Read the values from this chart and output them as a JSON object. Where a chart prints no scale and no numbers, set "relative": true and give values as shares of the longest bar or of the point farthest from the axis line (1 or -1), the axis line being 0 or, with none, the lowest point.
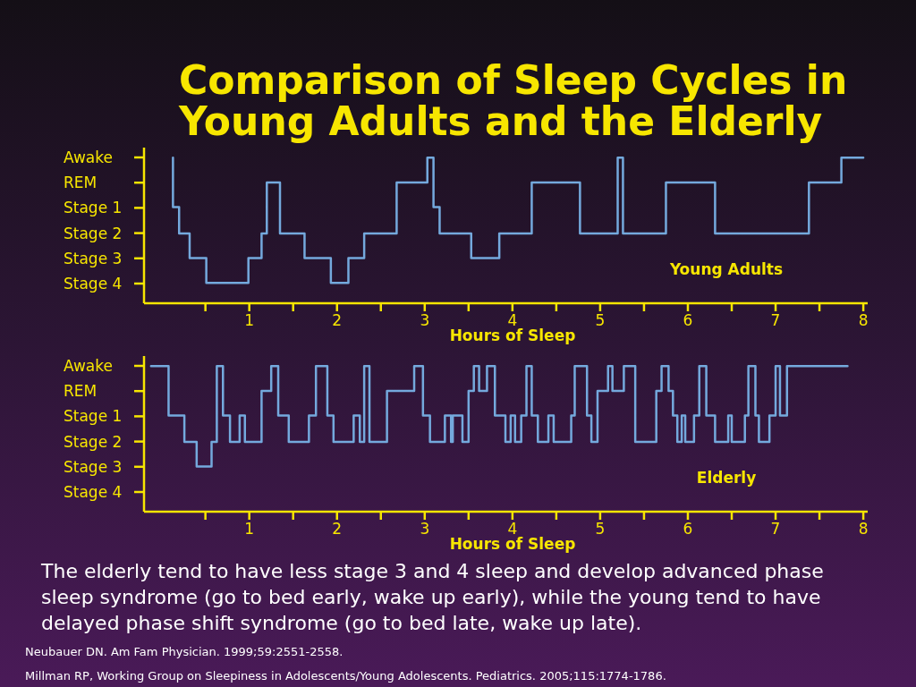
{
  "chart_data": [
    {
      "type": "step",
      "title": "Comparison of Sleep Cycles in Young Adults and the Elderly",
      "xlabel": "Hours of Sleep",
      "relative": true,
      "xlim": [
        -0.2,
        8.05
      ],
      "xticks": [
        {
          "value": 0.5,
          "label": null
        },
        1,
        {
          "value": 1.5,
          "label": null
        },
        2,
        {
          "value": 2.5,
          "label": null
        },
        3,
        {
          "value": 3.5,
          "label": null
        },
        4,
        {
          "value": 4.5,
          "label": null
        },
        5,
        {
          "value": 5.5,
          "label": null
        },
        6,
        {
          "value": 6.5,
          "label": null
        },
        7,
        {
          "value": 7.5,
          "label": null
        },
        8
      ],
      "y_categories": [
        "Awake",
        "REM",
        "Stage 1",
        "Stage 2",
        "Stage 3",
        "Stage 4"
      ],
      "grid": false,
      "annotations": [
        "Young Adults"
      ],
      "series": [
        {
          "color": "#74a9dd",
          "x": [
            0.13,
            0.13,
            0.2,
            0.32,
            0.51,
            0.99,
            1.14,
            1.2,
            1.35,
            1.63,
            1.93,
            2.13,
            2.31,
            2.68,
            3.03,
            3.1,
            3.17,
            3.53,
            3.85,
            4.22,
            4.77,
            5.2,
            5.26,
            5.75,
            6.31,
            7.38,
            7.75,
            8.0
          ],
          "values": [
            1,
            0.66,
            0.48,
            0.31,
            0.14,
            0.31,
            0.48,
            0.83,
            0.48,
            0.31,
            0.14,
            0.31,
            0.48,
            0.83,
            1,
            0.66,
            0.48,
            0.31,
            0.48,
            0.83,
            0.48,
            1,
            0.48,
            0.83,
            0.48,
            0.83,
            1,
            1
          ]
        }
      ]
    },
    {
      "type": "step",
      "xlabel": "Hours of Sleep",
      "relative": true,
      "xlim": [
        -0.2,
        8.05
      ],
      "xticks": [
        {
          "value": 0.5,
          "label": null
        },
        1,
        {
          "value": 1.5,
          "label": null
        },
        2,
        {
          "value": 2.5,
          "label": null
        },
        3,
        {
          "value": 3.5,
          "label": null
        },
        4,
        {
          "value": 4.5,
          "label": null
        },
        5,
        {
          "value": 5.5,
          "label": null
        },
        6,
        {
          "value": 6.5,
          "label": null
        },
        7,
        {
          "value": 7.5,
          "label": null
        },
        8
      ],
      "y_categories": [
        "Awake",
        "REM",
        "Stage 1",
        "Stage 2",
        "Stage 3",
        "Stage 4"
      ],
      "grid": false,
      "annotations": [
        "Elderly",
        "The elderly tend to have less stage 3 and 4 sleep and develop advanced phase sleep syndrome (go to bed early, wake up early), while the young tend to have delayed phase shift syndrome (go to bed late, wake up late).",
        "Neubauer DN. Am Fam Physician. 1999;59:2551-2558.",
        "Millman RP, Working Group on Sleepiness in Adolescents/Young Adolescents. Pediatrics. 2005;115:1774-1786."
      ],
      "series": [
        {
          "color": "#74a9dd",
          "x": [
            -0.12,
            0.08,
            0.26,
            0.4,
            0.57,
            0.63,
            0.7,
            0.78,
            0.89,
            0.95,
            1.14,
            1.25,
            1.33,
            1.45,
            1.68,
            1.76,
            1.89,
            1.96,
            2.19,
            2.26,
            2.31,
            2.37,
            2.57,
            2.88,
            2.98,
            3.06,
            3.23,
            3.3,
            3.32,
            3.43,
            3.5,
            3.56,
            3.62,
            3.71,
            3.8,
            3.92,
            3.98,
            4.03,
            4.1,
            4.16,
            4.22,
            4.29,
            4.41,
            4.47,
            4.67,
            4.71,
            4.85,
            4.9,
            4.97,
            5.09,
            5.14,
            5.27,
            5.4,
            5.64,
            5.7,
            5.78,
            5.83,
            5.88,
            5.93,
            5.97,
            6.07,
            6.13,
            6.21,
            6.31,
            6.46,
            6.5,
            6.65,
            6.69,
            6.77,
            6.81,
            6.93,
            7.0,
            7.05,
            7.13,
            7.82
          ],
          "values": [
            1,
            0.66,
            0.48,
            0.31,
            0.48,
            1,
            0.66,
            0.48,
            0.66,
            0.48,
            0.83,
            1,
            0.66,
            0.48,
            0.66,
            1,
            0.66,
            0.48,
            0.66,
            0.48,
            1,
            0.48,
            0.83,
            1,
            0.66,
            0.48,
            0.66,
            0.48,
            0.66,
            0.48,
            0.83,
            1,
            0.83,
            1,
            0.66,
            0.48,
            0.66,
            0.48,
            0.66,
            1,
            0.66,
            0.48,
            0.66,
            0.48,
            0.66,
            1,
            0.66,
            0.48,
            0.83,
            1,
            0.83,
            1,
            0.48,
            0.83,
            1,
            0.83,
            0.66,
            0.48,
            0.66,
            0.48,
            0.66,
            1,
            0.66,
            0.48,
            0.66,
            0.48,
            0.66,
            1,
            0.66,
            0.48,
            0.66,
            1,
            0.66,
            1,
            1
          ]
        }
      ]
    }
  ]
}
